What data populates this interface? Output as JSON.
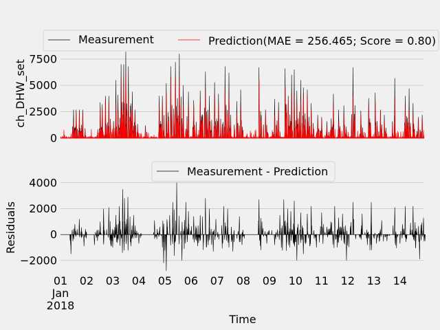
{
  "figure": {
    "background": "#f0f0f0",
    "grid_color": "#cbcbcb",
    "measurement_color": "#000000",
    "prediction_color": "#ff0000"
  },
  "x_axis": {
    "xlabel": "Time",
    "tick_labels": [
      "01",
      "02",
      "03",
      "04",
      "05",
      "06",
      "07",
      "08",
      "09",
      "10",
      "11",
      "12",
      "13",
      "14"
    ],
    "month_label": "Jan",
    "year_label": "2018",
    "xlim_days": [
      1,
      14.9
    ]
  },
  "chart_data": [
    {
      "type": "line",
      "ylabel": "ch_DHW_set",
      "ylim": [
        -200,
        8400
      ],
      "yticks": [
        0,
        2500,
        5000,
        7500
      ],
      "ytick_labels": [
        "0",
        "2500",
        "5000",
        "7500"
      ],
      "grid": true,
      "legend": {
        "placement": "top",
        "ncol": 2
      },
      "series": [
        {
          "name": "Measurement",
          "color": "#000000",
          "line_width": 0.6
        },
        {
          "name": "Prediction(MAE = 256.465; Score = 0.80)",
          "color": "#ff0000",
          "line_width": 0.6
        }
      ],
      "peaks_day_value": [
        [
          1.5,
          2700
        ],
        [
          1.6,
          2700
        ],
        [
          1.72,
          2700
        ],
        [
          1.85,
          2700
        ],
        [
          2.52,
          3400
        ],
        [
          2.6,
          3200
        ],
        [
          2.72,
          4000
        ],
        [
          2.85,
          4000
        ],
        [
          3.12,
          5500
        ],
        [
          3.2,
          4100
        ],
        [
          3.32,
          7000
        ],
        [
          3.42,
          7000
        ],
        [
          3.5,
          8200
        ],
        [
          3.6,
          6800
        ],
        [
          3.75,
          4400
        ],
        [
          3.85,
          2700
        ],
        [
          4.25,
          1200
        ],
        [
          4.78,
          4000
        ],
        [
          4.9,
          4000
        ],
        [
          5.05,
          5200
        ],
        [
          5.22,
          6800
        ],
        [
          5.4,
          7200
        ],
        [
          5.55,
          8000
        ],
        [
          5.7,
          5000
        ],
        [
          5.9,
          4400
        ],
        [
          6.1,
          3600
        ],
        [
          6.35,
          4500
        ],
        [
          6.55,
          6300
        ],
        [
          6.7,
          4000
        ],
        [
          6.9,
          5300
        ],
        [
          7.05,
          4200
        ],
        [
          7.3,
          6800
        ],
        [
          7.45,
          6200
        ],
        [
          7.75,
          3500
        ],
        [
          7.9,
          4600
        ],
        [
          8.6,
          6700
        ],
        [
          8.85,
          2700
        ],
        [
          9.2,
          3700
        ],
        [
          9.35,
          3400
        ],
        [
          9.6,
          6600
        ],
        [
          9.72,
          4000
        ],
        [
          9.85,
          6000
        ],
        [
          9.95,
          6500
        ],
        [
          10.05,
          4500
        ],
        [
          10.2,
          5500
        ],
        [
          10.3,
          4800
        ],
        [
          10.45,
          4600
        ],
        [
          10.6,
          3300
        ],
        [
          10.85,
          2200
        ],
        [
          11.0,
          2000
        ],
        [
          11.2,
          1600
        ],
        [
          11.45,
          4200
        ],
        [
          11.65,
          2700
        ],
        [
          11.85,
          3100
        ],
        [
          12.2,
          6700
        ],
        [
          12.5,
          2600
        ],
        [
          12.8,
          3800
        ],
        [
          13.05,
          4300
        ],
        [
          13.25,
          2700
        ],
        [
          13.4,
          2200
        ],
        [
          13.8,
          5700
        ],
        [
          14.2,
          4000
        ],
        [
          14.35,
          4700
        ],
        [
          14.5,
          3300
        ],
        [
          14.7,
          2000
        ],
        [
          14.85,
          2200
        ]
      ]
    },
    {
      "type": "line",
      "ylabel": "Residuals",
      "ylim": [
        -2800,
        4200
      ],
      "yticks": [
        -2000,
        0,
        2000,
        4000
      ],
      "ytick_labels": [
        "−2000",
        "0",
        "2000",
        "4000"
      ],
      "grid": true,
      "legend": {
        "placement": "top",
        "ncol": 1
      },
      "series": [
        {
          "name": "Measurement - Prediction",
          "color": "#000000",
          "line_width": 0.6
        }
      ],
      "peaks_day_value": [
        [
          1.4,
          -1500
        ],
        [
          1.55,
          800
        ],
        [
          1.72,
          1200
        ],
        [
          1.9,
          -900
        ],
        [
          2.3,
          -800
        ],
        [
          2.52,
          1000
        ],
        [
          2.65,
          2000
        ],
        [
          2.85,
          2100
        ],
        [
          3.0,
          -1000
        ],
        [
          3.12,
          1500
        ],
        [
          3.25,
          2200
        ],
        [
          3.38,
          3500
        ],
        [
          3.45,
          2800
        ],
        [
          3.58,
          2900
        ],
        [
          3.7,
          -900
        ],
        [
          3.8,
          1500
        ],
        [
          4.0,
          -700
        ],
        [
          4.6,
          1100
        ],
        [
          4.8,
          600
        ],
        [
          4.95,
          -2200
        ],
        [
          5.05,
          -2800
        ],
        [
          5.18,
          1500
        ],
        [
          5.3,
          2500
        ],
        [
          5.45,
          4000
        ],
        [
          5.65,
          -2000
        ],
        [
          5.8,
          2500
        ],
        [
          5.9,
          1800
        ],
        [
          6.1,
          1400
        ],
        [
          6.25,
          -900
        ],
        [
          6.35,
          1500
        ],
        [
          6.55,
          2800
        ],
        [
          6.7,
          2000
        ],
        [
          6.85,
          -1300
        ],
        [
          6.95,
          1200
        ],
        [
          7.25,
          2200
        ],
        [
          7.4,
          2000
        ],
        [
          7.6,
          -1300
        ],
        [
          7.85,
          1400
        ],
        [
          7.95,
          -800
        ],
        [
          8.6,
          2700
        ],
        [
          8.75,
          500
        ],
        [
          8.9,
          -700
        ],
        [
          9.2,
          -800
        ],
        [
          9.4,
          1500
        ],
        [
          9.55,
          2700
        ],
        [
          9.7,
          2000
        ],
        [
          9.82,
          1800
        ],
        [
          9.95,
          2600
        ],
        [
          10.05,
          -2000
        ],
        [
          10.2,
          1700
        ],
        [
          10.3,
          -1500
        ],
        [
          10.45,
          1600
        ],
        [
          10.6,
          2200
        ],
        [
          10.8,
          -1000
        ],
        [
          11.0,
          1700
        ],
        [
          11.2,
          600
        ],
        [
          11.35,
          1000
        ],
        [
          11.5,
          2200
        ],
        [
          11.6,
          -1000
        ],
        [
          11.65,
          1300
        ],
        [
          11.8,
          1600
        ],
        [
          11.95,
          -2000
        ],
        [
          12.2,
          2500
        ],
        [
          12.55,
          1600
        ],
        [
          12.75,
          -800
        ],
        [
          12.9,
          2500
        ],
        [
          13.1,
          -700
        ],
        [
          13.3,
          1100
        ],
        [
          13.5,
          -500
        ],
        [
          13.8,
          2100
        ],
        [
          14.0,
          -700
        ],
        [
          14.2,
          2200
        ],
        [
          14.5,
          2200
        ],
        [
          14.6,
          -1000
        ],
        [
          14.75,
          -1900
        ],
        [
          14.9,
          1300
        ]
      ]
    }
  ]
}
